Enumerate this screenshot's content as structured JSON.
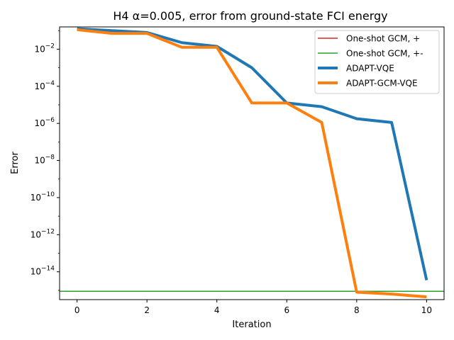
{
  "chart_data": {
    "type": "line",
    "title": "H4 α=0.005, error from ground-state FCI energy",
    "xlabel": "Iteration",
    "ylabel": "Error",
    "yscale": "log",
    "xlim": [
      -0.5,
      10.5
    ],
    "ylim_exp": [
      -15.5,
      -0.8
    ],
    "x_ticks": [
      0,
      2,
      4,
      6,
      8,
      10
    ],
    "y_tick_exps": [
      -14,
      -12,
      -10,
      -8,
      -6,
      -4,
      -2
    ],
    "legend_position": "upper right",
    "series": [
      {
        "name": "One-shot GCM, +",
        "kind": "hline",
        "color": "#d62728",
        "linewidth": 1.5,
        "value_exp": -15.05
      },
      {
        "name": "One-shot GCM, +-",
        "kind": "hline",
        "color": "#2ca02c",
        "linewidth": 1.5,
        "value_exp": -15.05
      },
      {
        "name": "ADAPT-VQE",
        "kind": "line",
        "color": "#1f77b4",
        "linewidth": 4,
        "x": [
          0,
          1,
          2,
          3,
          4,
          5,
          6,
          7,
          8,
          9,
          10
        ],
        "y_exp": [
          -0.9,
          -1.0,
          -1.1,
          -1.65,
          -1.85,
          -3.0,
          -4.9,
          -5.1,
          -5.75,
          -5.95,
          -14.45
        ]
      },
      {
        "name": "ADAPT-GCM-VQE",
        "kind": "line",
        "color": "#ff7f0e",
        "linewidth": 4,
        "x": [
          0,
          1,
          2,
          3,
          4,
          5,
          6,
          7,
          8,
          9,
          10
        ],
        "y_exp": [
          -0.95,
          -1.15,
          -1.15,
          -1.9,
          -1.9,
          -4.9,
          -4.9,
          -5.95,
          -15.1,
          -15.2,
          -15.35
        ]
      }
    ]
  }
}
